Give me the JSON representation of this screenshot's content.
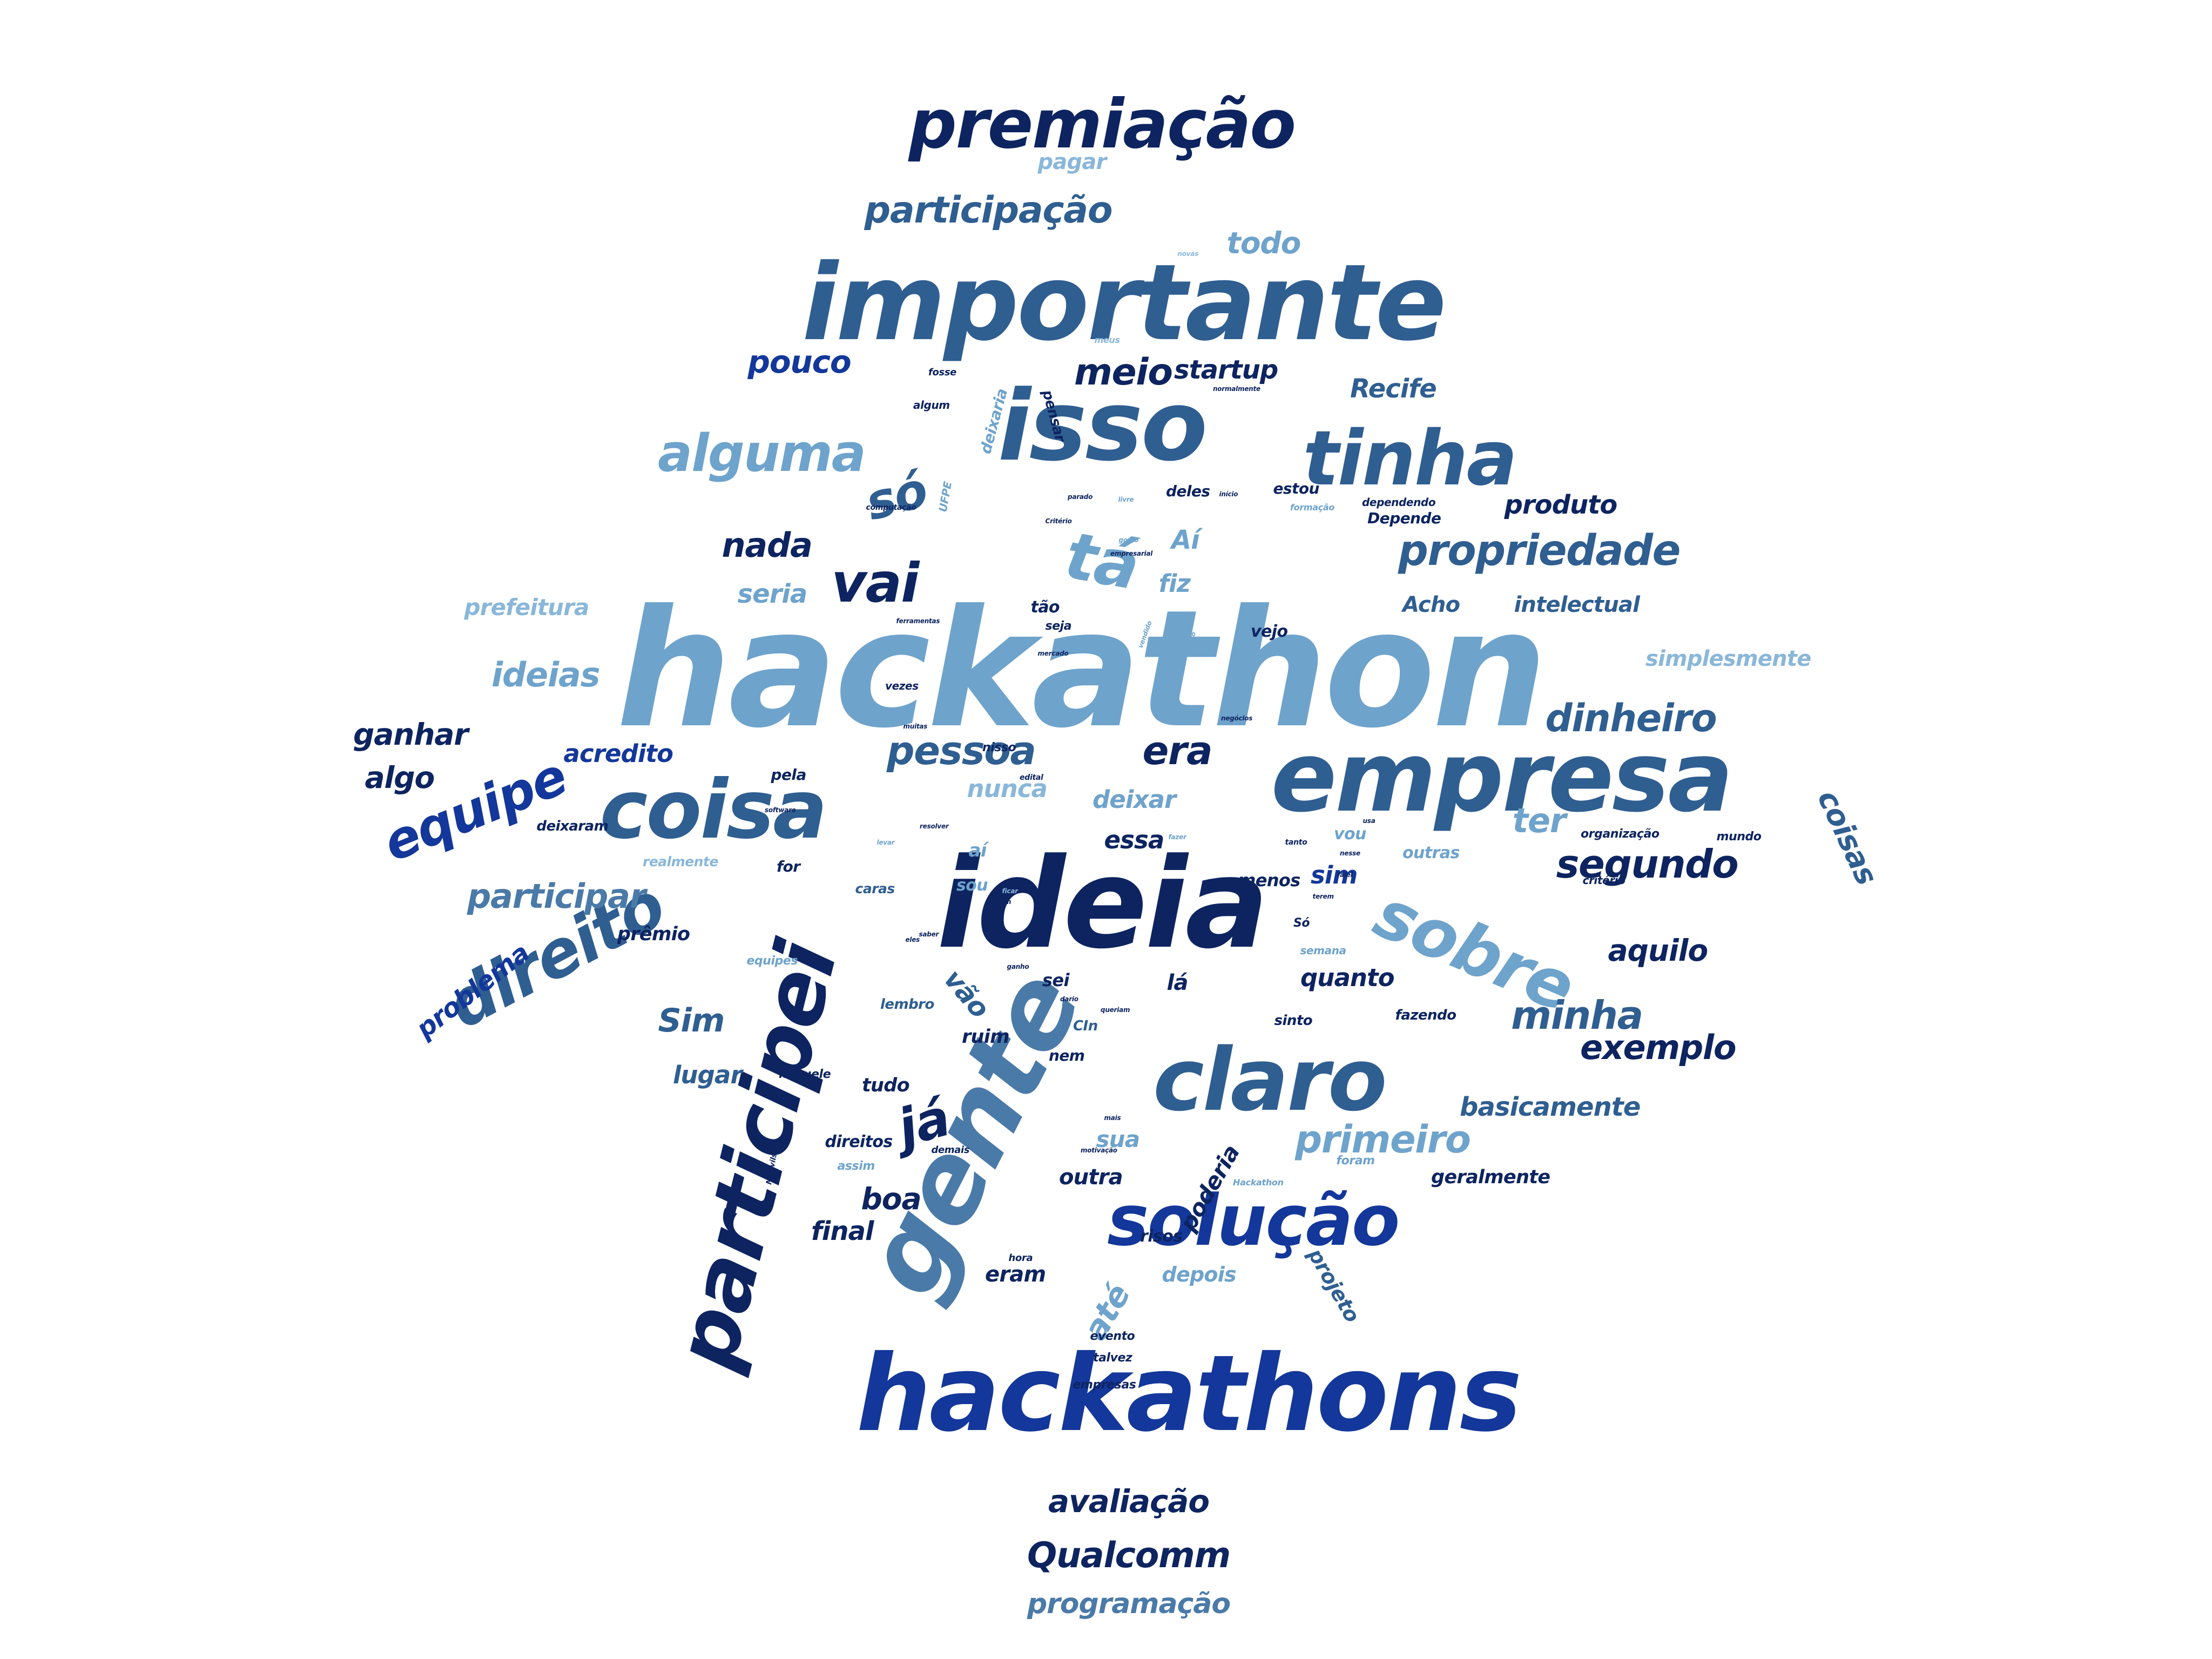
{
  "palette": {
    "navy": "#0d2460",
    "dark": "#13379a",
    "mid": "#2f5e91",
    "steel": "#4a7aa8",
    "light": "#6ea3cc",
    "pale": "#8ab7d9"
  },
  "words": [
    {
      "t": "hackathon",
      "c": "light"
    },
    {
      "t": "ideia",
      "c": "navy"
    },
    {
      "t": "importante",
      "c": "mid"
    },
    {
      "t": "hackathons",
      "c": "dark"
    },
    {
      "t": "empresa",
      "c": "mid"
    },
    {
      "t": "isso",
      "c": "mid"
    },
    {
      "t": "gente",
      "c": "steel"
    },
    {
      "t": "participei",
      "c": "navy"
    },
    {
      "t": "coisa",
      "c": "mid"
    },
    {
      "t": "claro",
      "c": "mid"
    },
    {
      "t": "solução",
      "c": "dark"
    },
    {
      "t": "tinha",
      "c": "mid"
    },
    {
      "t": "premiação",
      "c": "navy"
    },
    {
      "t": "direito",
      "c": "mid"
    },
    {
      "t": "sobre",
      "c": "light"
    },
    {
      "t": "tá",
      "c": "light"
    },
    {
      "t": "vai",
      "c": "navy"
    },
    {
      "t": "alguma",
      "c": "light"
    },
    {
      "t": "só",
      "c": "mid"
    },
    {
      "t": "propriedade",
      "c": "mid"
    },
    {
      "t": "participação",
      "c": "mid"
    },
    {
      "t": "equipe",
      "c": "dark"
    },
    {
      "t": "participar",
      "c": "steel"
    },
    {
      "t": "segundo",
      "c": "navy"
    },
    {
      "t": "minha",
      "c": "mid"
    },
    {
      "t": "exemplo",
      "c": "navy"
    },
    {
      "t": "pessoa",
      "c": "mid"
    },
    {
      "t": "dinheiro",
      "c": "mid"
    },
    {
      "t": "primeiro",
      "c": "light"
    },
    {
      "t": "Qualcomm",
      "c": "navy"
    },
    {
      "t": "avaliação",
      "c": "navy"
    },
    {
      "t": "programação",
      "c": "steel"
    },
    {
      "t": "ideias",
      "c": "light"
    },
    {
      "t": "meio",
      "c": "navy"
    },
    {
      "t": "pouco",
      "c": "dark"
    },
    {
      "t": "startup",
      "c": "navy"
    },
    {
      "t": "todo",
      "c": "light"
    },
    {
      "t": "pagar",
      "c": "pale"
    },
    {
      "t": "Recife",
      "c": "mid"
    },
    {
      "t": "nada",
      "c": "navy"
    },
    {
      "t": "seria",
      "c": "light"
    },
    {
      "t": "Aí",
      "c": "light"
    },
    {
      "t": "fiz",
      "c": "light"
    },
    {
      "t": "produto",
      "c": "navy"
    },
    {
      "t": "Acho",
      "c": "mid"
    },
    {
      "t": "intelectual",
      "c": "mid"
    },
    {
      "t": "simplesmente",
      "c": "pale"
    },
    {
      "t": "prefeitura",
      "c": "pale"
    },
    {
      "t": "ganhar",
      "c": "navy"
    },
    {
      "t": "acredito",
      "c": "dark"
    },
    {
      "t": "era",
      "c": "navy"
    },
    {
      "t": "nunca",
      "c": "pale"
    },
    {
      "t": "essa",
      "c": "navy"
    },
    {
      "t": "deixar",
      "c": "light"
    },
    {
      "t": "ter",
      "c": "light"
    },
    {
      "t": "sim",
      "c": "dark"
    },
    {
      "t": "algo",
      "c": "navy"
    },
    {
      "t": "coisas",
      "c": "mid"
    },
    {
      "t": "aquilo",
      "c": "navy"
    },
    {
      "t": "Sim",
      "c": "mid"
    },
    {
      "t": "lugar",
      "c": "mid"
    },
    {
      "t": "já",
      "c": "navy"
    },
    {
      "t": "boa",
      "c": "navy"
    },
    {
      "t": "quanto",
      "c": "navy"
    },
    {
      "t": "basicamente",
      "c": "mid"
    },
    {
      "t": "final",
      "c": "navy"
    },
    {
      "t": "vão",
      "c": "mid"
    },
    {
      "t": "até",
      "c": "light"
    },
    {
      "t": "problema",
      "c": "dark"
    },
    {
      "t": "prêmio",
      "c": "navy"
    },
    {
      "t": "lá",
      "c": "navy"
    },
    {
      "t": "sua",
      "c": "light"
    },
    {
      "t": "outra",
      "c": "navy"
    },
    {
      "t": "poderia",
      "c": "navy"
    },
    {
      "t": "geralmente",
      "c": "navy"
    },
    {
      "t": "eram",
      "c": "navy"
    },
    {
      "t": "depois",
      "c": "light"
    },
    {
      "t": "projeto",
      "c": "mid"
    },
    {
      "t": "sei",
      "c": "navy"
    },
    {
      "t": "tudo",
      "c": "navy"
    },
    {
      "t": "ruim",
      "c": "navy"
    },
    {
      "t": "nem",
      "c": "navy"
    },
    {
      "t": "sinto",
      "c": "navy"
    },
    {
      "t": "fazendo",
      "c": "navy"
    },
    {
      "t": "vejo",
      "c": "navy"
    },
    {
      "t": "tão",
      "c": "navy"
    },
    {
      "t": "pela",
      "c": "navy"
    },
    {
      "t": "menos",
      "c": "navy"
    },
    {
      "t": "vou",
      "c": "light"
    },
    {
      "t": "outras",
      "c": "light"
    },
    {
      "t": "for",
      "c": "navy"
    },
    {
      "t": "sou",
      "c": "light"
    },
    {
      "t": "aí",
      "c": "light"
    },
    {
      "t": "caras",
      "c": "mid"
    },
    {
      "t": "realmente",
      "c": "pale"
    },
    {
      "t": "deixaram",
      "c": "navy"
    },
    {
      "t": "risos",
      "c": "navy"
    },
    {
      "t": "evento",
      "c": "navy"
    },
    {
      "t": "talvez",
      "c": "navy"
    },
    {
      "t": "empresas",
      "c": "navy"
    },
    {
      "t": "hora",
      "c": "navy"
    },
    {
      "t": "CIn",
      "c": "mid"
    },
    {
      "t": "lembro",
      "c": "mid"
    },
    {
      "t": "naquele",
      "c": "navy"
    },
    {
      "t": "direitos",
      "c": "navy"
    },
    {
      "t": "assim",
      "c": "light"
    },
    {
      "t": "demais",
      "c": "navy"
    },
    {
      "t": "organização",
      "c": "navy"
    },
    {
      "t": "mundo",
      "c": "navy"
    },
    {
      "t": "critério",
      "c": "navy"
    },
    {
      "t": "estou",
      "c": "navy"
    },
    {
      "t": "deles",
      "c": "navy"
    },
    {
      "t": "Depende",
      "c": "navy"
    },
    {
      "t": "dependendo",
      "c": "navy"
    },
    {
      "t": "nisso",
      "c": "navy"
    },
    {
      "t": "vezes",
      "c": "navy"
    },
    {
      "t": "equipes",
      "c": "light"
    },
    {
      "t": "semana",
      "c": "light"
    },
    {
      "t": "seja",
      "c": "navy"
    },
    {
      "t": "meus",
      "c": "pale"
    },
    {
      "t": "fosse",
      "c": "navy"
    },
    {
      "t": "algum",
      "c": "navy"
    },
    {
      "t": "novas",
      "c": "pale"
    },
    {
      "t": "deixaria",
      "c": "light"
    },
    {
      "t": "pensar",
      "c": "navy"
    },
    {
      "t": "formação",
      "c": "light"
    },
    {
      "t": "Só",
      "c": "navy"
    },
    {
      "t": "foram",
      "c": "light"
    },
    {
      "t": "Hackathon",
      "c": "light"
    },
    {
      "t": "UFPE",
      "c": "light"
    },
    {
      "t": "computação",
      "c": "navy"
    },
    {
      "t": "parado",
      "c": "navy"
    },
    {
      "t": "gosto",
      "c": "light"
    },
    {
      "t": "Critério",
      "c": "navy"
    },
    {
      "t": "empresarial",
      "c": "navy"
    },
    {
      "t": "ferramentas",
      "c": "navy"
    },
    {
      "t": "muitas",
      "c": "navy"
    },
    {
      "t": "mercado",
      "c": "navy"
    },
    {
      "t": "normalmente",
      "c": "navy"
    },
    {
      "t": "negócios",
      "c": "navy"
    },
    {
      "t": "Mauvilsa",
      "c": "navy"
    },
    {
      "t": "motivação",
      "c": "navy"
    },
    {
      "t": "software",
      "c": "navy"
    },
    {
      "t": "resolver",
      "c": "navy"
    },
    {
      "t": "momento",
      "c": "light"
    },
    {
      "t": "vendido",
      "c": "light"
    },
    {
      "t": "ganho",
      "c": "navy"
    },
    {
      "t": "queriam",
      "c": "navy"
    },
    {
      "t": "ficar",
      "c": "pale"
    },
    {
      "t": "dario",
      "c": "navy"
    },
    {
      "t": "livre",
      "c": "light"
    },
    {
      "t": "início",
      "c": "navy"
    },
    {
      "t": "tanto",
      "c": "navy"
    },
    {
      "t": "fazer",
      "c": "light"
    },
    {
      "t": "eles",
      "c": "navy"
    },
    {
      "t": "nesse",
      "c": "navy"
    },
    {
      "t": "pegam",
      "c": "navy"
    },
    {
      "t": "falei",
      "c": "navy"
    },
    {
      "t": "edital",
      "c": "navy"
    },
    {
      "t": "usa",
      "c": "navy"
    },
    {
      "t": "mais",
      "c": "navy"
    },
    {
      "t": "terem",
      "c": "navy"
    },
    {
      "t": "levar",
      "c": "light"
    },
    {
      "t": "saber",
      "c": "navy"
    }
  ]
}
